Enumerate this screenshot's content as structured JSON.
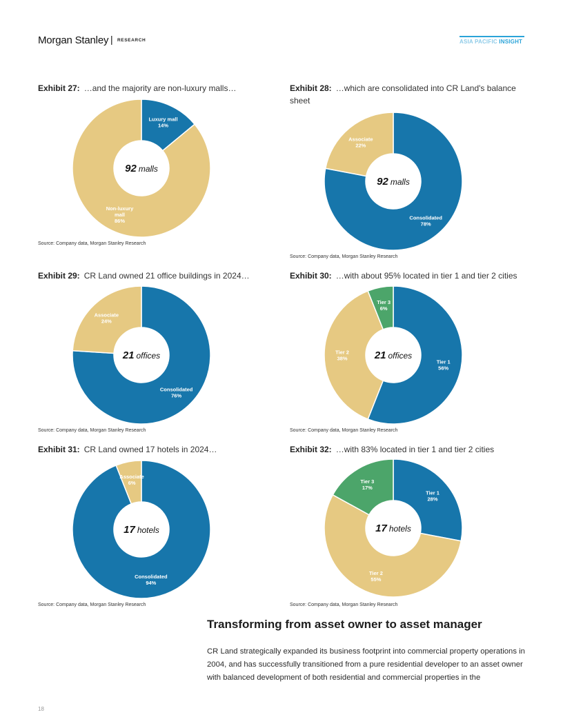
{
  "header": {
    "brand": "Morgan Stanley",
    "separator": "|",
    "research": "RESEARCH",
    "insight_region": "ASIA PACIFIC",
    "insight_word": "INSIGHT"
  },
  "colors": {
    "blue": "#1776ab",
    "gold": "#e6c982",
    "green": "#4ca56a",
    "accent": "#2aa3d8"
  },
  "chart_data": [
    {
      "id": "ex27",
      "type": "pie",
      "exhibit": "Exhibit 27:",
      "title": "…and the majority are non-luxury malls…",
      "center_num": "92",
      "center_unit": "malls",
      "source": "Source: Company data, Morgan Stanley Research",
      "slices": [
        {
          "label": [
            "Luxury mall",
            "14%"
          ],
          "value": 14,
          "color": "#1776ab"
        },
        {
          "label": [
            "Non-luxury",
            "mall",
            "86%"
          ],
          "value": 86,
          "color": "#e6c982"
        }
      ]
    },
    {
      "id": "ex28",
      "type": "pie",
      "exhibit": "Exhibit 28:",
      "title": "…which are consolidated into CR Land's balance sheet",
      "center_num": "92",
      "center_unit": "malls",
      "source": "Source: Company data, Morgan Stanley Research",
      "slices": [
        {
          "label": [
            "Consolidated",
            "78%"
          ],
          "value": 78,
          "color": "#1776ab"
        },
        {
          "label": [
            "Associate",
            "22%"
          ],
          "value": 22,
          "color": "#e6c982"
        }
      ]
    },
    {
      "id": "ex29",
      "type": "pie",
      "exhibit": "Exhibit 29:",
      "title": "CR Land owned 21 office buildings in 2024…",
      "center_num": "21",
      "center_unit": "offices",
      "source": "Source: Company data, Morgan Stanley Research",
      "slices": [
        {
          "label": [
            "Consolidated",
            "76%"
          ],
          "value": 76,
          "color": "#1776ab"
        },
        {
          "label": [
            "Associate",
            "24%"
          ],
          "value": 24,
          "color": "#e6c982"
        }
      ]
    },
    {
      "id": "ex30",
      "type": "pie",
      "exhibit": "Exhibit 30:",
      "title": "…with about 95% located in tier 1 and tier 2 cities",
      "center_num": "21",
      "center_unit": "offices",
      "source": "Source: Company data, Morgan Stanley Research",
      "slices": [
        {
          "label": [
            "Tier 1",
            "56%"
          ],
          "value": 56,
          "color": "#1776ab"
        },
        {
          "label": [
            "Tier 2",
            "38%"
          ],
          "value": 38,
          "color": "#e6c982"
        },
        {
          "label": [
            "Tier 3",
            "6%"
          ],
          "value": 6,
          "color": "#4ca56a"
        }
      ]
    },
    {
      "id": "ex31",
      "type": "pie",
      "exhibit": "Exhibit 31:",
      "title": "CR Land owned 17 hotels in 2024…",
      "center_num": "17",
      "center_unit": "hotels",
      "source": "Source: Company data, Morgan Stanley Research",
      "slices": [
        {
          "label": [
            "Consolidated",
            "94%"
          ],
          "value": 94,
          "color": "#1776ab"
        },
        {
          "label": [
            "Associate",
            "6%"
          ],
          "value": 6,
          "color": "#e6c982"
        }
      ]
    },
    {
      "id": "ex32",
      "type": "pie",
      "exhibit": "Exhibit 32:",
      "title": "…with 83% located in tier 1 and tier 2 cities",
      "center_num": "17",
      "center_unit": "hotels",
      "source": "Source: Company data, Morgan Stanley Research",
      "slices": [
        {
          "label": [
            "Tier 1",
            "28%"
          ],
          "value": 28,
          "color": "#1776ab"
        },
        {
          "label": [
            "Tier 2",
            "55%"
          ],
          "value": 55,
          "color": "#e6c982"
        },
        {
          "label": [
            "Tier 3",
            "17%"
          ],
          "value": 17,
          "color": "#4ca56a"
        }
      ]
    }
  ],
  "section": {
    "heading": "Transforming from asset owner to asset manager",
    "body": "CR Land strategically expanded its business footprint into commercial property operations in 2004, and has successfully transitioned from a pure residential developer to an asset owner with balanced development of both residential and commercial properties in the"
  },
  "footer": {
    "page_number": "18"
  }
}
